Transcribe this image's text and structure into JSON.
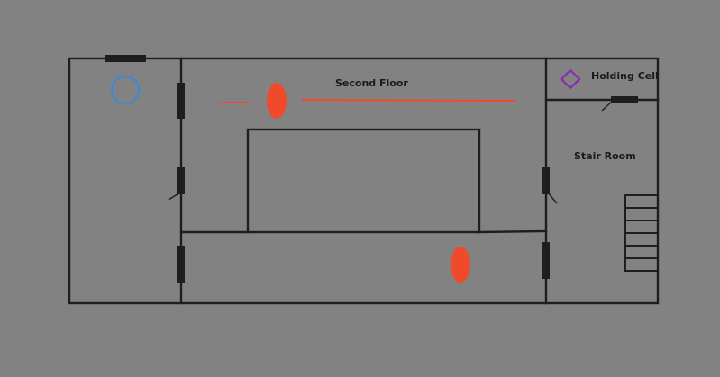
{
  "map": {
    "labels": {
      "second_floor": "Second Floor",
      "holding_cell": "Holding Cell",
      "stair_room": "Stair Room"
    },
    "colors": {
      "background": "#828282",
      "wall": "#1e1e1e",
      "enemy": "#f04a2c",
      "patrol_line": "#f04a2c",
      "player_marker": "#3a8ad8",
      "objective_marker": "#8a2ab0"
    },
    "markers": [
      {
        "name": "player-start-circle",
        "shape": "circle",
        "color": "#3a8ad8"
      },
      {
        "name": "objective-diamond",
        "shape": "diamond",
        "color": "#8a2ab0"
      },
      {
        "name": "enemy-guard-top",
        "shape": "ellipse",
        "color": "#f04a2c"
      },
      {
        "name": "enemy-guard-bottom",
        "shape": "ellipse",
        "color": "#f04a2c"
      }
    ]
  }
}
